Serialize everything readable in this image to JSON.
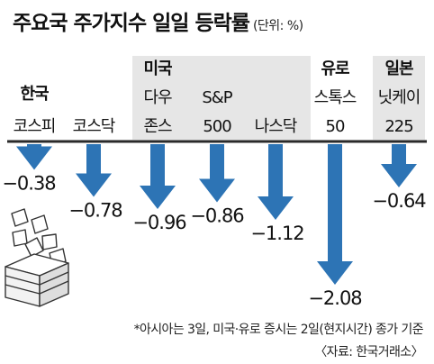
{
  "title": "주요국 주가지수 일일 등락률",
  "unit": "(단위: %)",
  "footnote": "*아시아는 3일, 미국·유로 증시는 2일(현지시간) 종가 기준",
  "source": "〈자료: 한국거래소〉",
  "colors": {
    "arrow": "#2d74b5",
    "baseline": "#2a2a2a",
    "text": "#111111",
    "shadow_light": "#b7b7b7",
    "header_bg": "#e6e6e6"
  },
  "chart_data": {
    "type": "bar",
    "categories": [
      "한국 코스피",
      "코스닥",
      "미국 다우 존스",
      "S&P 500",
      "나스닥",
      "유로 스톡스 50",
      "일본 닛케이 225"
    ],
    "values": [
      -0.38,
      -0.78,
      -0.96,
      -0.86,
      -1.12,
      -2.08,
      -0.64
    ],
    "value_labels": [
      "−0.38",
      "−0.78",
      "−0.96",
      "−0.86",
      "−1.12",
      "−2.08",
      "−0.64"
    ],
    "labels": [
      {
        "group": "한국",
        "name": "코스피"
      },
      {
        "group": "",
        "name": "코스닥"
      },
      {
        "group": "미국",
        "name": "다우 존스"
      },
      {
        "group": "",
        "name": "S&P 500"
      },
      {
        "group": "",
        "name": "나스닥"
      },
      {
        "group": "유로",
        "name": "스톡스 50"
      },
      {
        "group": "일본",
        "name": "닛케이 225"
      }
    ],
    "ylim": [
      -2.2,
      0
    ],
    "title": "주요국 주가지수 일일 등락률",
    "xlabel": "",
    "ylabel": ""
  }
}
